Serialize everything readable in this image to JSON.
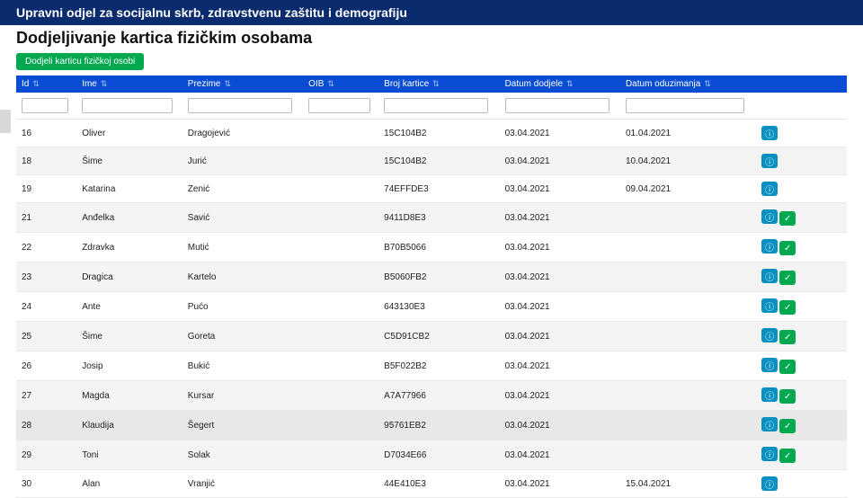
{
  "header": {
    "department": "Upravni odjel za socijalnu skrb, zdravstvenu zaštitu i demografiju"
  },
  "page": {
    "title": "Dodjeljivanje kartica fizičkim osobama",
    "addButton": "Dodjeli karticu fizičkoj osobi"
  },
  "columns": {
    "id": "Id",
    "ime": "Ime",
    "prezime": "Prezime",
    "oib": "OIB",
    "broj": "Broj kartice",
    "dod": "Datum dodjele",
    "odu": "Datum oduzimanja"
  },
  "rows": [
    {
      "id": "16",
      "ime": "Oliver",
      "prez": "Dragojević",
      "oib": "",
      "broj": "15C104B2",
      "dod": "03.04.2021",
      "odu": "01.04.2021",
      "check": false
    },
    {
      "id": "18",
      "ime": "Šime",
      "prez": "Jurić",
      "oib": "",
      "broj": "15C104B2",
      "dod": "03.04.2021",
      "odu": "10.04.2021",
      "check": false
    },
    {
      "id": "19",
      "ime": "Katarina",
      "prez": "Zenić",
      "oib": "",
      "broj": "74EFFDE3",
      "dod": "03.04.2021",
      "odu": "09.04.2021",
      "check": false
    },
    {
      "id": "21",
      "ime": "Anđelka",
      "prez": "Savić",
      "oib": "",
      "broj": "9411D8E3",
      "dod": "03.04.2021",
      "odu": "",
      "check": true
    },
    {
      "id": "22",
      "ime": "Zdravka",
      "prez": "Mutić",
      "oib": "",
      "broj": "B70B5066",
      "dod": "03.04.2021",
      "odu": "",
      "check": true
    },
    {
      "id": "23",
      "ime": "Dragica",
      "prez": "Kartelo",
      "oib": "",
      "broj": "B5060FB2",
      "dod": "03.04.2021",
      "odu": "",
      "check": true
    },
    {
      "id": "24",
      "ime": "Ante",
      "prez": "Pućo",
      "oib": "",
      "broj": "643130E3",
      "dod": "03.04.2021",
      "odu": "",
      "check": true
    },
    {
      "id": "25",
      "ime": "Šime",
      "prez": "Goreta",
      "oib": "",
      "broj": "C5D91CB2",
      "dod": "03.04.2021",
      "odu": "",
      "check": true
    },
    {
      "id": "26",
      "ime": "Josip",
      "prez": "Bukić",
      "oib": "",
      "broj": "B5F022B2",
      "dod": "03.04.2021",
      "odu": "",
      "check": true
    },
    {
      "id": "27",
      "ime": "Magda",
      "prez": "Kursar",
      "oib": "",
      "broj": "A7A77966",
      "dod": "03.04.2021",
      "odu": "",
      "check": true
    },
    {
      "id": "28",
      "ime": "Klaudija",
      "prez": "Šegert",
      "oib": "",
      "broj": "95761EB2",
      "dod": "03.04.2021",
      "odu": "",
      "check": true,
      "hl": true
    },
    {
      "id": "29",
      "ime": "Toni",
      "prez": "Solak",
      "oib": "",
      "broj": "D7034E66",
      "dod": "03.04.2021",
      "odu": "",
      "check": true
    },
    {
      "id": "30",
      "ime": "Alan",
      "prez": "Vranjić",
      "oib": "",
      "broj": "44E410E3",
      "dod": "03.04.2021",
      "odu": "15.04.2021",
      "check": false
    }
  ],
  "colors": {
    "header_bg": "#0a2b6e",
    "table_head_bg": "#0a4cd3",
    "add_btn": "#00a94f",
    "info_btn": "#0a91c2",
    "check_btn": "#00a94f"
  }
}
